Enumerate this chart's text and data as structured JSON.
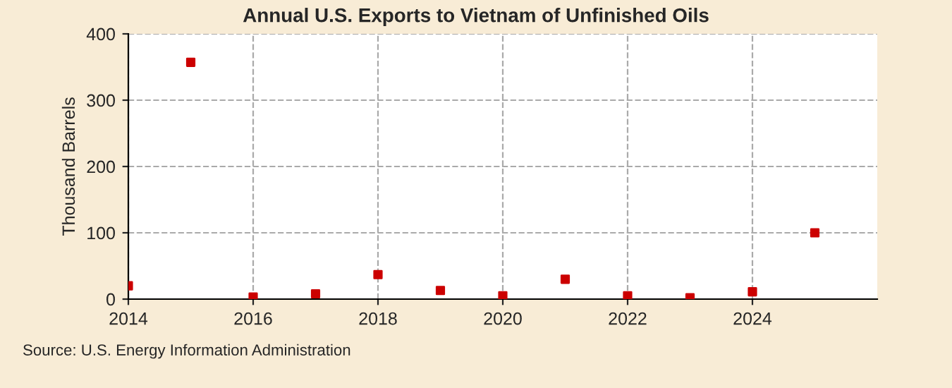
{
  "chart_data": {
    "type": "scatter",
    "title": "Annual U.S. Exports to Vietnam of Unfinished Oils",
    "ylabel": "Thousand Barrels",
    "x": [
      2014,
      2015,
      2016,
      2017,
      2018,
      2019,
      2020,
      2021,
      2022,
      2023,
      2024,
      2025
    ],
    "series": [
      {
        "color": "#cc0000",
        "values": [
          20,
          357,
          3,
          8,
          37,
          13,
          5,
          30,
          5,
          2,
          11,
          100
        ]
      }
    ],
    "xlim": [
      2014,
      2026
    ],
    "xticks": [
      2014,
      2016,
      2018,
      2020,
      2022,
      2024
    ],
    "ylim": [
      0,
      400
    ],
    "yticks": [
      0,
      100,
      200,
      300,
      400
    ],
    "grid": true,
    "marker": "square",
    "legend": false,
    "annotations": [
      "Source: U.S. Energy Information Administration"
    ]
  }
}
